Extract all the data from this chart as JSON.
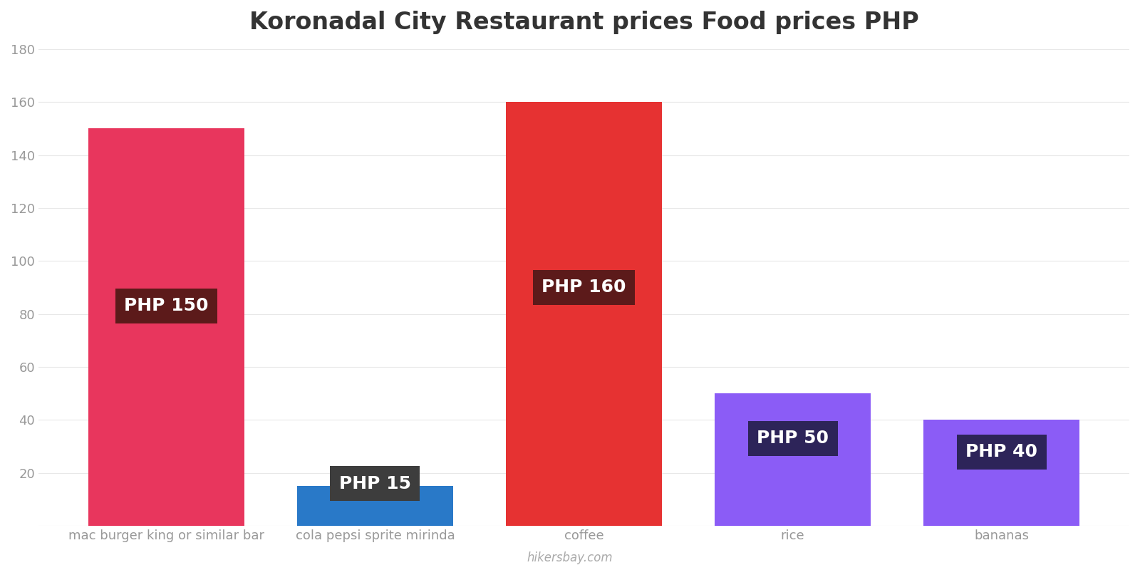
{
  "title": "Koronadal City Restaurant prices Food prices PHP",
  "categories": [
    "mac burger king or similar bar",
    "cola pepsi sprite mirinda",
    "coffee",
    "rice",
    "bananas"
  ],
  "values": [
    150,
    15,
    160,
    50,
    40
  ],
  "bar_colors": [
    "#e8365d",
    "#2979c8",
    "#e63232",
    "#8b5cf6",
    "#8b5cf6"
  ],
  "label_texts": [
    "PHP 150",
    "PHP 15",
    "PHP 160",
    "PHP 50",
    "PHP 40"
  ],
  "label_box_colors": [
    "#5c1a1a",
    "#3d3d3d",
    "#5c1a1a",
    "#2d2459",
    "#2d2459"
  ],
  "label_y_positions": [
    83,
    16,
    90,
    33,
    28
  ],
  "ylim": [
    0,
    180
  ],
  "yticks": [
    0,
    20,
    40,
    60,
    80,
    100,
    120,
    140,
    160,
    180
  ],
  "watermark": "hikersbay.com",
  "title_fontsize": 24,
  "tick_fontsize": 13,
  "label_fontsize": 18,
  "background_color": "#ffffff",
  "grid_color": "#e8e8e8",
  "bar_width": 0.75
}
